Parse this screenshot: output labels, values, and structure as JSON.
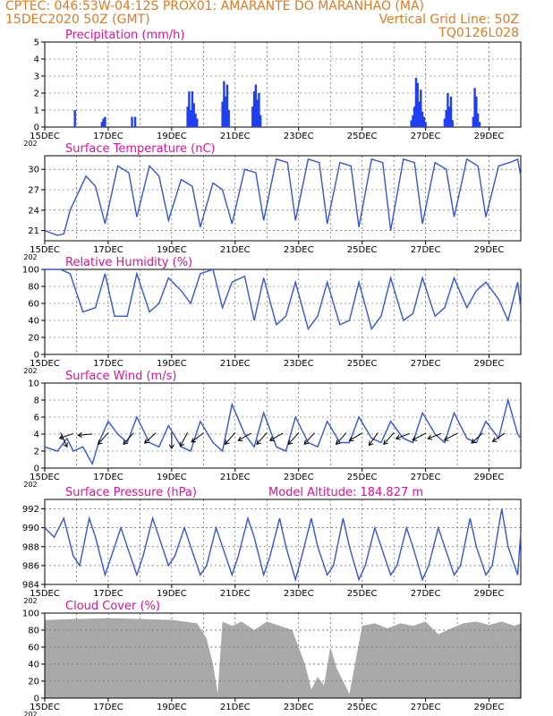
{
  "header": {
    "line1_left": "CPTEC:  046:53W-04:12S   PROX01: AMARANTE DO MARANHAO (MA)",
    "line2_left": "15DEC2020 50Z (GMT)",
    "line2_right": "Vertical Grid Line: 50Z",
    "line3_right": "TQ0126L028"
  },
  "x_axis": {
    "tick_labels": [
      "15DEC",
      "17DEC",
      "19DEC",
      "21DEC",
      "23DEC",
      "25DEC",
      "27DEC",
      "29DEC"
    ],
    "range_days": [
      15,
      30
    ],
    "year_stub": "202"
  },
  "colors": {
    "line": "#3355dd",
    "bar": "#1f3ff0",
    "cloud": "#a9a9a9",
    "title": "#e0109a",
    "header": "#e07a22"
  },
  "chart_data": [
    {
      "type": "bar",
      "title": "Precipitation (mm/h)",
      "ylim": [
        0,
        5
      ],
      "yticks": [
        "0",
        "1",
        "2",
        "3",
        "4",
        "5"
      ],
      "x": [
        15.95,
        16.8,
        16.85,
        16.9,
        17.75,
        17.85,
        19.5,
        19.55,
        19.6,
        19.65,
        19.7,
        19.75,
        19.8,
        20.6,
        20.65,
        20.7,
        20.75,
        20.8,
        21.55,
        21.6,
        21.65,
        21.7,
        21.75,
        21.8,
        26.55,
        26.6,
        26.65,
        26.7,
        26.75,
        26.8,
        26.85,
        26.9,
        26.95,
        27.0,
        27.6,
        27.65,
        27.7,
        27.75,
        27.8,
        27.85,
        28.5,
        28.55,
        28.6,
        28.65,
        28.7
      ],
      "values": [
        1.0,
        0.3,
        0.5,
        0.6,
        0.6,
        0.6,
        1.2,
        2.1,
        1.0,
        2.1,
        1.4,
        0.8,
        0.5,
        1.5,
        2.7,
        1.8,
        2.5,
        1.0,
        1.2,
        2.1,
        2.5,
        1.6,
        2.0,
        0.7,
        0.4,
        0.7,
        1.2,
        2.9,
        2.6,
        1.5,
        2.2,
        0.9,
        0.6,
        0.3,
        0.5,
        1.0,
        2.0,
        1.2,
        1.8,
        0.4,
        0.6,
        2.3,
        1.8,
        0.8,
        0.3
      ]
    },
    {
      "type": "line",
      "title": "Surface Temperature (nC)",
      "ylim": [
        19.5,
        32
      ],
      "yticks": [
        "21",
        "24",
        "27",
        "30"
      ],
      "ytick_values": [
        21,
        24,
        27,
        30
      ],
      "x": [
        15.0,
        15.4,
        15.6,
        15.8,
        16.3,
        16.6,
        16.9,
        17.3,
        17.65,
        17.9,
        18.3,
        18.6,
        18.9,
        19.3,
        19.65,
        19.9,
        20.3,
        20.6,
        20.9,
        21.3,
        21.65,
        21.9,
        22.3,
        22.65,
        22.9,
        23.3,
        23.65,
        23.9,
        24.3,
        24.65,
        24.9,
        25.3,
        25.65,
        25.9,
        26.3,
        26.65,
        26.9,
        27.3,
        27.65,
        27.9,
        28.3,
        28.65,
        28.9,
        29.3,
        29.65,
        29.9,
        30.0
      ],
      "values": [
        21.0,
        20.3,
        20.5,
        24.0,
        29.0,
        27.5,
        22.0,
        30.5,
        29.5,
        23.0,
        30.5,
        29.0,
        22.5,
        28.5,
        27.5,
        21.5,
        28.0,
        27.0,
        22.0,
        30.0,
        29.5,
        22.5,
        31.5,
        31.0,
        22.5,
        31.5,
        31.0,
        22.0,
        31.0,
        30.5,
        21.5,
        31.5,
        31.0,
        21.0,
        31.5,
        31.0,
        22.0,
        31.0,
        30.0,
        23.0,
        31.5,
        30.5,
        23.0,
        30.5,
        31.0,
        31.5,
        29.0
      ]
    },
    {
      "type": "line",
      "title": "Relative Humidity (%)",
      "ylim": [
        0,
        100
      ],
      "yticks": [
        "0",
        "20",
        "40",
        "60",
        "80",
        "100"
      ],
      "ytick_values": [
        0,
        20,
        40,
        60,
        80,
        100
      ],
      "x": [
        15.0,
        15.5,
        15.8,
        16.2,
        16.6,
        16.9,
        17.2,
        17.6,
        17.9,
        18.3,
        18.6,
        18.9,
        19.3,
        19.6,
        19.9,
        20.3,
        20.6,
        20.9,
        21.3,
        21.6,
        21.9,
        22.3,
        22.6,
        22.9,
        23.3,
        23.6,
        23.9,
        24.3,
        24.6,
        24.9,
        25.3,
        25.6,
        25.9,
        26.3,
        26.6,
        26.9,
        27.3,
        27.6,
        27.9,
        28.3,
        28.6,
        28.9,
        29.3,
        29.6,
        29.9,
        30.0
      ],
      "values": [
        100,
        100,
        95,
        50,
        55,
        95,
        45,
        45,
        95,
        50,
        60,
        90,
        75,
        60,
        95,
        100,
        55,
        85,
        92,
        40,
        90,
        35,
        45,
        85,
        30,
        45,
        85,
        35,
        40,
        85,
        30,
        45,
        90,
        40,
        48,
        90,
        45,
        55,
        90,
        55,
        75,
        85,
        65,
        40,
        85,
        55
      ]
    },
    {
      "type": "line",
      "title": "Surface Wind (m/s)",
      "ylim": [
        0,
        10
      ],
      "yticks": [
        "0",
        "2",
        "4",
        "6",
        "8",
        "10"
      ],
      "ytick_values": [
        0,
        2,
        4,
        6,
        8,
        10
      ],
      "x": [
        15.0,
        15.4,
        15.7,
        15.9,
        16.2,
        16.5,
        16.7,
        17.0,
        17.3,
        17.6,
        17.9,
        18.3,
        18.6,
        18.9,
        19.3,
        19.6,
        19.9,
        20.3,
        20.6,
        20.9,
        21.3,
        21.6,
        21.9,
        22.3,
        22.6,
        22.9,
        23.3,
        23.6,
        23.9,
        24.3,
        24.6,
        24.9,
        25.3,
        25.6,
        25.9,
        26.3,
        26.6,
        26.9,
        27.3,
        27.6,
        27.9,
        28.3,
        28.6,
        28.9,
        29.3,
        29.6,
        29.9,
        30.0
      ],
      "values": [
        2.5,
        2.0,
        3.5,
        2.0,
        2.5,
        0.5,
        3.0,
        5.5,
        4.0,
        3.0,
        6.0,
        3.0,
        2.5,
        5.0,
        2.5,
        2.0,
        5.5,
        3.0,
        2.0,
        7.5,
        4.0,
        2.5,
        6.5,
        2.5,
        2.0,
        6.0,
        3.0,
        2.5,
        5.5,
        3.0,
        3.0,
        6.0,
        3.5,
        3.0,
        5.5,
        3.5,
        3.0,
        6.5,
        4.0,
        3.0,
        6.5,
        3.5,
        3.0,
        5.5,
        3.5,
        8.0,
        4.0,
        3.5
      ],
      "vectors": [
        {
          "x": 15.5,
          "u": -0.5,
          "v": 1.0
        },
        {
          "x": 15.9,
          "u": 1.0,
          "v": 0.3
        },
        {
          "x": 16.5,
          "u": 1.2,
          "v": 0.1
        },
        {
          "x": 17.0,
          "u": 1.0,
          "v": 1.0
        },
        {
          "x": 17.8,
          "u": 1.0,
          "v": 1.0
        },
        {
          "x": 18.5,
          "u": 1.0,
          "v": 0.8
        },
        {
          "x": 19.0,
          "u": 0.0,
          "v": 1.0
        },
        {
          "x": 19.5,
          "u": 0.6,
          "v": 1.0
        },
        {
          "x": 20.0,
          "u": 1.2,
          "v": 0.8
        },
        {
          "x": 21.0,
          "u": 1.0,
          "v": 1.0
        },
        {
          "x": 21.5,
          "u": 1.2,
          "v": 0.6
        },
        {
          "x": 22.0,
          "u": 1.0,
          "v": 1.0
        },
        {
          "x": 22.5,
          "u": 1.2,
          "v": 0.6
        },
        {
          "x": 23.0,
          "u": 1.0,
          "v": 1.0
        },
        {
          "x": 23.5,
          "u": 1.0,
          "v": 1.0
        },
        {
          "x": 24.5,
          "u": 1.0,
          "v": 1.0
        },
        {
          "x": 25.0,
          "u": 1.2,
          "v": 0.6
        },
        {
          "x": 25.5,
          "u": 0.8,
          "v": 1.0
        },
        {
          "x": 26.0,
          "u": 1.0,
          "v": 1.0
        },
        {
          "x": 26.5,
          "u": 1.2,
          "v": 0.4
        },
        {
          "x": 27.0,
          "u": 1.3,
          "v": 0.6
        },
        {
          "x": 27.5,
          "u": 1.2,
          "v": 0.4
        },
        {
          "x": 28.0,
          "u": 1.3,
          "v": 0.6
        },
        {
          "x": 28.8,
          "u": 1.0,
          "v": 0.8
        },
        {
          "x": 29.5,
          "u": 1.0,
          "v": 0.6
        }
      ]
    },
    {
      "type": "line",
      "title": "Surface Pressure (hPa)",
      "annotation": "Model Altitude: 184.827  m",
      "ylim": [
        984,
        993
      ],
      "yticks": [
        "984",
        "986",
        "988",
        "990",
        "992"
      ],
      "ytick_values": [
        984,
        986,
        988,
        990,
        992
      ],
      "x": [
        15.0,
        15.3,
        15.6,
        15.9,
        16.1,
        16.4,
        16.6,
        16.9,
        17.1,
        17.4,
        17.6,
        17.9,
        18.1,
        18.4,
        18.6,
        18.9,
        19.1,
        19.4,
        19.6,
        19.9,
        20.1,
        20.4,
        20.6,
        20.9,
        21.1,
        21.4,
        21.6,
        21.9,
        22.1,
        22.4,
        22.6,
        22.9,
        23.1,
        23.4,
        23.6,
        23.9,
        24.1,
        24.4,
        24.6,
        24.9,
        25.1,
        25.4,
        25.6,
        25.9,
        26.1,
        26.4,
        26.6,
        26.9,
        27.1,
        27.4,
        27.6,
        27.9,
        28.1,
        28.4,
        28.6,
        28.9,
        29.1,
        29.4,
        29.6,
        29.9,
        30.0
      ],
      "values": [
        990,
        989,
        991,
        987,
        986,
        991,
        989,
        985,
        987,
        990,
        988,
        985,
        987,
        991,
        989,
        986,
        987,
        990,
        988,
        985,
        986,
        990,
        988,
        985,
        987,
        991,
        989,
        985,
        987,
        991,
        988,
        984.5,
        987,
        991,
        988,
        985,
        986,
        991,
        988,
        984.5,
        986,
        990,
        988,
        985,
        986,
        990,
        988,
        984.5,
        986,
        990,
        988,
        985,
        986,
        991,
        988,
        985,
        986,
        992,
        988,
        985,
        989.5
      ]
    },
    {
      "type": "area",
      "title": "Cloud Cover (%)",
      "ylim": [
        0,
        100
      ],
      "yticks": [
        "0",
        "20",
        "40",
        "60",
        "80",
        "100"
      ],
      "ytick_values": [
        0,
        20,
        40,
        60,
        80,
        100
      ],
      "x": [
        15.0,
        16.0,
        17.0,
        18.0,
        19.0,
        19.8,
        20.1,
        20.3,
        20.45,
        20.6,
        20.9,
        21.2,
        21.6,
        22.0,
        22.4,
        22.8,
        23.0,
        23.2,
        23.4,
        23.6,
        23.8,
        24.0,
        24.2,
        24.4,
        24.6,
        24.8,
        25.0,
        25.4,
        25.8,
        26.2,
        26.6,
        27.0,
        27.4,
        27.8,
        28.2,
        28.6,
        29.0,
        29.4,
        29.8,
        30.0
      ],
      "values": [
        92,
        93,
        94,
        93,
        92,
        88,
        70,
        40,
        5,
        90,
        85,
        90,
        80,
        90,
        85,
        80,
        60,
        40,
        10,
        25,
        15,
        60,
        35,
        20,
        5,
        45,
        85,
        88,
        82,
        88,
        85,
        90,
        75,
        82,
        88,
        90,
        86,
        90,
        85,
        88
      ]
    }
  ]
}
